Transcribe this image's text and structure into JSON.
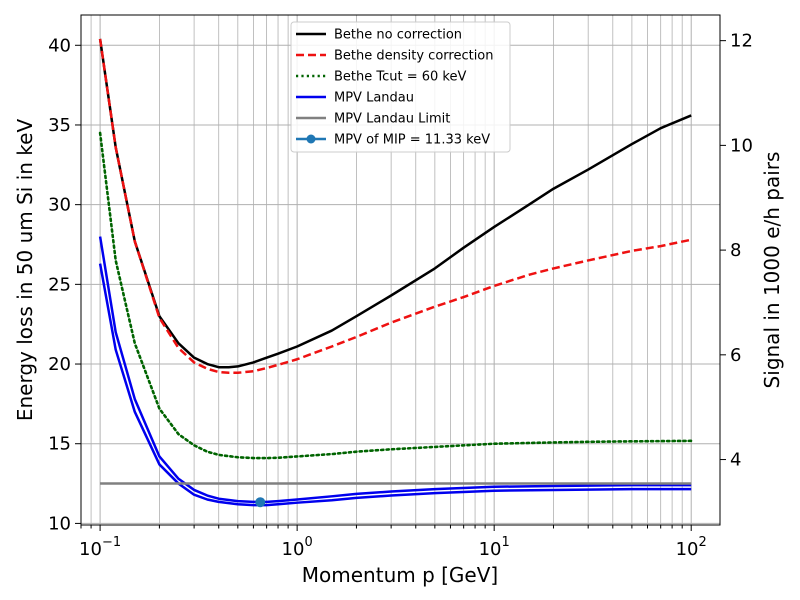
{
  "chart_data": {
    "type": "line",
    "xlabel": "Momentum p [GeV]",
    "ylabel": "Energy loss in 50 um Si in keV",
    "y2label": "Signal in 1000 e/h pairs",
    "xscale": "log",
    "xlim": [
      0.08,
      140
    ],
    "ylim": [
      9.9,
      41.9
    ],
    "y2lim": [
      2.75,
      12.49
    ],
    "x_ticks": [
      {
        "value": 0.1,
        "base": "10",
        "exp": "−1"
      },
      {
        "value": 1,
        "base": "10",
        "exp": "0"
      },
      {
        "value": 10,
        "base": "10",
        "exp": "1"
      },
      {
        "value": 100,
        "base": "10",
        "exp": "2"
      }
    ],
    "y_ticks": [
      "10",
      "15",
      "20",
      "25",
      "30",
      "35",
      "40"
    ],
    "y2_ticks": [
      "4",
      "6",
      "8",
      "10",
      "12"
    ],
    "grid": "major and minor x, major y",
    "legend_placement": "top-center",
    "series": [
      {
        "name": "Bethe no correction",
        "color": "#000000",
        "style": "solid",
        "x": [
          0.1,
          0.12,
          0.15,
          0.2,
          0.25,
          0.3,
          0.35,
          0.4,
          0.45,
          0.5,
          0.6,
          0.7,
          0.8,
          1,
          1.5,
          2,
          3,
          5,
          7,
          10,
          15,
          20,
          30,
          50,
          70,
          100
        ],
        "y": [
          40.4,
          33.6,
          27.7,
          23.0,
          21.3,
          20.4,
          20.0,
          19.8,
          19.8,
          19.85,
          20.1,
          20.4,
          20.65,
          21.1,
          22.1,
          23.0,
          24.3,
          26.0,
          27.3,
          28.6,
          30.0,
          31.0,
          32.2,
          33.8,
          34.8,
          35.6
        ]
      },
      {
        "name": "Bethe density correction",
        "color": "#ee1111",
        "style": "dashed",
        "x": [
          0.1,
          0.12,
          0.15,
          0.2,
          0.25,
          0.3,
          0.35,
          0.4,
          0.45,
          0.5,
          0.6,
          0.7,
          0.8,
          1,
          1.5,
          2,
          3,
          5,
          7,
          10,
          15,
          20,
          30,
          50,
          70,
          100
        ],
        "y": [
          40.4,
          33.6,
          27.7,
          22.9,
          21.0,
          20.1,
          19.7,
          19.5,
          19.45,
          19.45,
          19.55,
          19.75,
          19.95,
          20.3,
          21.1,
          21.7,
          22.6,
          23.6,
          24.2,
          24.9,
          25.6,
          26.0,
          26.5,
          27.1,
          27.4,
          27.8
        ]
      },
      {
        "name": "Bethe Tcut = 60 keV",
        "color": "#006400",
        "style": "dotted",
        "x": [
          0.1,
          0.12,
          0.15,
          0.2,
          0.25,
          0.3,
          0.35,
          0.4,
          0.5,
          0.6,
          0.7,
          0.8,
          1,
          1.5,
          2,
          3,
          5,
          10,
          20,
          30,
          50,
          100
        ],
        "y": [
          34.5,
          26.5,
          21.3,
          17.2,
          15.6,
          14.9,
          14.5,
          14.3,
          14.15,
          14.1,
          14.1,
          14.12,
          14.2,
          14.35,
          14.5,
          14.65,
          14.8,
          15.0,
          15.08,
          15.12,
          15.15,
          15.18
        ]
      },
      {
        "name": "MPV Landau",
        "color": "#0000ee",
        "style": "solid",
        "x": [
          0.1,
          0.12,
          0.15,
          0.2,
          0.25,
          0.3,
          0.35,
          0.4,
          0.5,
          0.6,
          0.7,
          0.8,
          1,
          1.5,
          2,
          3,
          5,
          10,
          20,
          50,
          100
        ],
        "y": [
          28.0,
          22.0,
          17.8,
          14.2,
          12.8,
          12.1,
          11.75,
          11.55,
          11.4,
          11.35,
          11.35,
          11.4,
          11.5,
          11.7,
          11.85,
          12.0,
          12.15,
          12.3,
          12.35,
          12.4,
          12.4
        ]
      },
      {
        "name": "",
        "color": "#0000ee",
        "style": "solid",
        "x": [
          0.1,
          0.12,
          0.15,
          0.2,
          0.25,
          0.3,
          0.35,
          0.4,
          0.5,
          0.6,
          0.7,
          0.8,
          1,
          1.5,
          2,
          3,
          5,
          10,
          20,
          50,
          100
        ],
        "y": [
          26.3,
          20.9,
          17.0,
          13.7,
          12.5,
          11.8,
          11.5,
          11.35,
          11.2,
          11.15,
          11.15,
          11.2,
          11.3,
          11.45,
          11.6,
          11.75,
          11.9,
          12.05,
          12.1,
          12.15,
          12.15
        ]
      },
      {
        "name": "MPV Landau Limit",
        "color": "#808080",
        "style": "solid",
        "x": [
          0.1,
          100
        ],
        "y": [
          12.5,
          12.5
        ]
      }
    ],
    "points": [
      {
        "name": "MPV of MIP = 11.33 keV",
        "color": "#1f77b4",
        "x": 0.65,
        "y": 11.33
      }
    ]
  }
}
